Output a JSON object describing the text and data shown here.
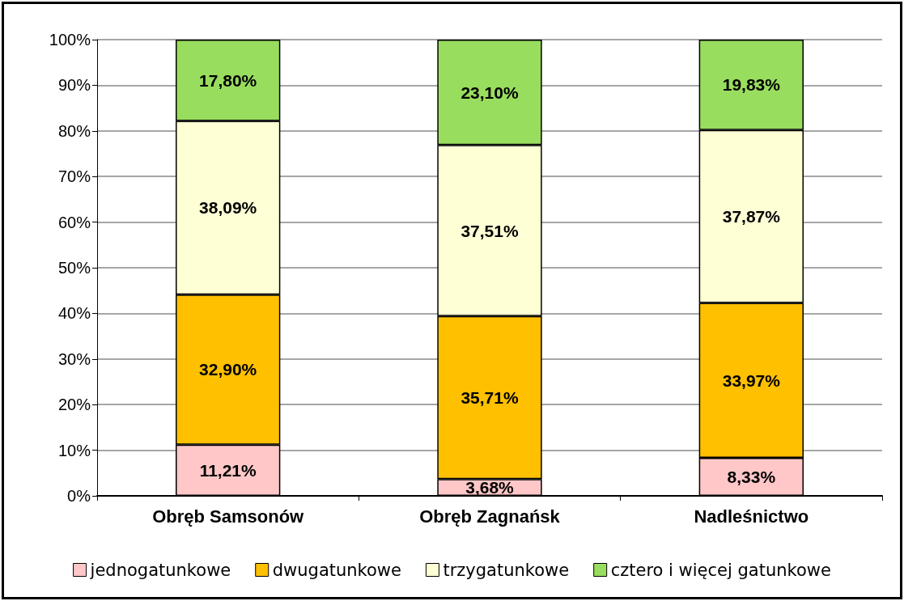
{
  "chart_data": {
    "type": "bar",
    "stacked": true,
    "categories": [
      "Obręb Samsonów",
      "Obręb Zagnańsk",
      "Nadleśnictwo"
    ],
    "series": [
      {
        "name": "jednogatunkowe",
        "color": "#ffc7c7",
        "values": [
          11.21,
          3.68,
          8.33
        ],
        "value_labels": [
          "11,21%",
          "3,68%",
          "8,33%"
        ]
      },
      {
        "name": "dwugatunkowe",
        "color": "#ffc000",
        "values": [
          32.9,
          35.71,
          33.97
        ],
        "value_labels": [
          "32,90%",
          "35,71%",
          "33,97%"
        ]
      },
      {
        "name": "trzygatunkowe",
        "color": "#ffffd5",
        "values": [
          38.09,
          37.51,
          37.87
        ],
        "value_labels": [
          "38,09%",
          "37,51%",
          "37,87%"
        ]
      },
      {
        "name": "cztero i więcej gatunkowe",
        "color": "#99dd5f",
        "values": [
          17.8,
          23.1,
          19.83
        ],
        "value_labels": [
          "17,80%",
          "23,10%",
          "19,83%"
        ]
      }
    ],
    "ylim": [
      0,
      100
    ],
    "yticks": [
      {
        "value": 0,
        "label": "0%"
      },
      {
        "value": 10,
        "label": "10%"
      },
      {
        "value": 20,
        "label": "20%"
      },
      {
        "value": 30,
        "label": "30%"
      },
      {
        "value": 40,
        "label": "40%"
      },
      {
        "value": 50,
        "label": "50%"
      },
      {
        "value": 60,
        "label": "60%"
      },
      {
        "value": 70,
        "label": "70%"
      },
      {
        "value": 80,
        "label": "80%"
      },
      {
        "value": 90,
        "label": "90%"
      },
      {
        "value": 100,
        "label": "100%"
      }
    ],
    "grid": "y",
    "legend": "bottom"
  }
}
